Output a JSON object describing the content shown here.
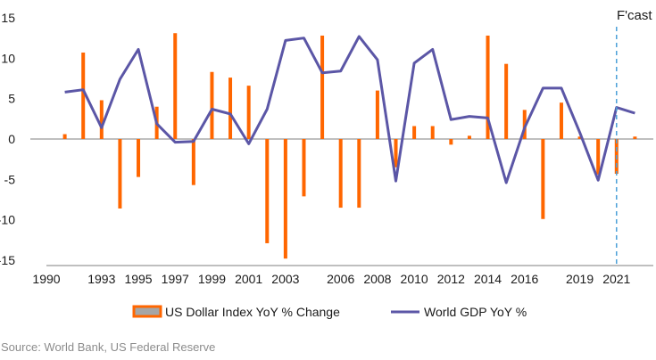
{
  "chart_data": {
    "type": "bar",
    "title": "",
    "xlabel": "",
    "ylabel": "",
    "ylim": [
      -15,
      15
    ],
    "yticks": [
      15,
      10,
      5,
      0,
      -5,
      -10,
      -15
    ],
    "xlim": [
      1990,
      2023
    ],
    "xticks": [
      "1990",
      "1993",
      "1995",
      "1997",
      "1999",
      "2001",
      "2003",
      "2006",
      "2008",
      "2010",
      "2012",
      "2014",
      "2016",
      "2019",
      "2021"
    ],
    "forecast_label": "F'cast",
    "forecast_from": 2021,
    "grid": false,
    "legend_position": "bottom",
    "series": [
      {
        "name": "US Dollar Index YoY % Change",
        "type": "bar",
        "color": "#ff6600",
        "x": [
          1991,
          1992,
          1993,
          1994,
          1995,
          1996,
          1997,
          1998,
          1999,
          2000,
          2001,
          2002,
          2003,
          2004,
          2005,
          2006,
          2007,
          2008,
          2009,
          2010,
          2011,
          2012,
          2013,
          2014,
          2015,
          2016,
          2017,
          2018,
          2019,
          2020,
          2021,
          2022
        ],
        "values": [
          0.6,
          10.7,
          4.8,
          -8.6,
          -4.7,
          4.0,
          13.1,
          -5.7,
          8.3,
          7.6,
          6.6,
          -12.9,
          -14.8,
          -7.1,
          12.8,
          -8.5,
          -8.5,
          6.0,
          -3.5,
          1.6,
          1.6,
          -0.7,
          0.4,
          12.8,
          9.3,
          3.6,
          -9.9,
          4.5,
          0.3,
          -4.4,
          -4.3,
          0.3
        ]
      },
      {
        "name": "World GDP YoY %",
        "type": "line",
        "color": "#5b56a6",
        "x": [
          1991,
          1992,
          1993,
          1994,
          1995,
          1996,
          1997,
          1998,
          1999,
          2000,
          2001,
          2002,
          2003,
          2004,
          2005,
          2006,
          2007,
          2008,
          2009,
          2010,
          2011,
          2012,
          2013,
          2014,
          2015,
          2016,
          2017,
          2018,
          2019,
          2020,
          2021,
          2022
        ],
        "values": [
          5.8,
          6.1,
          1.4,
          7.4,
          11.1,
          1.9,
          -0.4,
          -0.3,
          3.7,
          3.1,
          -0.6,
          3.7,
          12.2,
          12.5,
          8.2,
          8.4,
          12.7,
          9.8,
          -5.2,
          9.4,
          11.1,
          2.4,
          2.8,
          2.6,
          -5.4,
          1.4,
          6.3,
          6.3,
          0.8,
          -5.1,
          3.9,
          3.2
        ]
      }
    ]
  },
  "legend": {
    "bar_label": "US Dollar Index YoY % Change",
    "line_label": "World GDP YoY %"
  },
  "source": "Source: World Bank, US Federal Reserve",
  "colors": {
    "bar": "#ff6600",
    "line": "#5b56a6",
    "forecast_line": "#4a9fd8",
    "axis": "#7f7f7f",
    "legend_bar_fill": "#a6a6a6"
  }
}
